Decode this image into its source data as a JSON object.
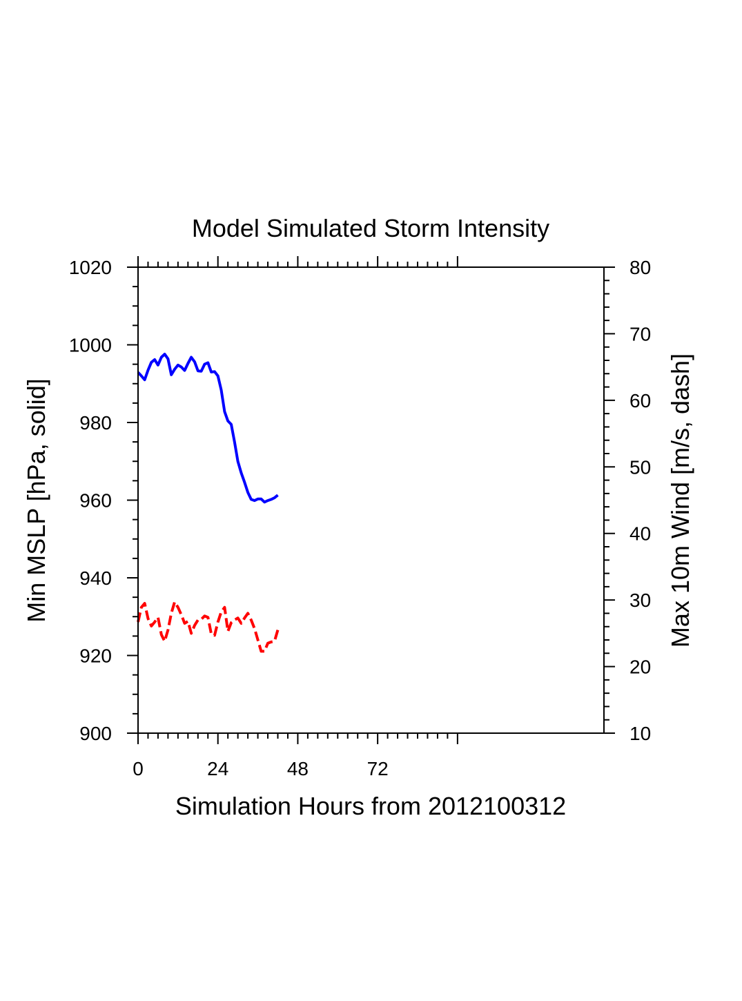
{
  "chart_data": {
    "type": "line",
    "title": "Model Simulated Storm Intensity",
    "xlabel": "Simulation Hours from 2012100312",
    "ylabel_left": "Min MSLP  [hPa, solid]",
    "ylabel_right": "Max 10m Wind  [m/s, dash]",
    "xlim": [
      0,
      140
    ],
    "ylim_left": [
      900,
      1020
    ],
    "ylim_right": [
      10,
      80
    ],
    "x_ticks": [
      "0",
      "24",
      "48",
      "72"
    ],
    "y_ticks_left": [
      "900",
      "920",
      "940",
      "960",
      "980",
      "1000",
      "1020"
    ],
    "y_ticks_right": [
      "10",
      "20",
      "30",
      "40",
      "50",
      "60",
      "70",
      "80"
    ],
    "grid": false,
    "series": [
      {
        "name": "Min MSLP",
        "axis": "left",
        "style": "solid",
        "color": "#0000ff",
        "x": [
          0,
          1,
          2,
          3,
          4,
          5,
          6,
          7,
          8,
          9,
          10,
          11,
          12,
          13,
          14,
          15,
          16,
          17,
          18,
          19,
          20,
          21,
          22,
          23,
          24,
          25,
          26,
          27,
          28,
          29,
          30,
          31,
          32,
          33,
          34,
          35,
          36,
          37,
          38,
          39,
          40,
          41,
          42
        ],
        "values": [
          992.9,
          992.0,
          991.0,
          993.5,
          995.5,
          996.2,
          994.8,
          996.8,
          997.6,
          996.4,
          992.3,
          993.7,
          994.8,
          994.3,
          993.4,
          995.2,
          996.8,
          995.6,
          993.3,
          993.2,
          995.0,
          995.4,
          993.0,
          993.1,
          992.0,
          988.4,
          982.8,
          980.4,
          979.5,
          975.0,
          970.0,
          967.0,
          964.6,
          962.0,
          960.2,
          959.9,
          960.3,
          960.3,
          959.5,
          959.9,
          960.2,
          960.6,
          961.3
        ]
      },
      {
        "name": "Max 10m Wind",
        "axis": "right",
        "style": "dash",
        "color": "#ff0000",
        "x": [
          0,
          1,
          2,
          3,
          4,
          5,
          6,
          7,
          8,
          9,
          10,
          11,
          12,
          13,
          14,
          15,
          16,
          17,
          18,
          19,
          20,
          21,
          22,
          23,
          24,
          25,
          26,
          27,
          28,
          29,
          30,
          31,
          32,
          33,
          34,
          35,
          36,
          37,
          38,
          39,
          40,
          41,
          42
        ],
        "values": [
          26.7,
          28.9,
          29.5,
          27.2,
          26.1,
          26.7,
          27.4,
          24.8,
          23.8,
          25.5,
          28.0,
          29.7,
          28.9,
          27.8,
          26.5,
          26.8,
          25.0,
          26.2,
          27.0,
          27.1,
          27.6,
          27.4,
          24.9,
          24.7,
          26.7,
          28.2,
          28.9,
          25.3,
          26.6,
          27.0,
          27.3,
          26.5,
          27.3,
          28.0,
          27.0,
          25.7,
          24.0,
          22.3,
          22.3,
          23.5,
          23.7,
          23.8,
          25.5
        ]
      }
    ]
  }
}
